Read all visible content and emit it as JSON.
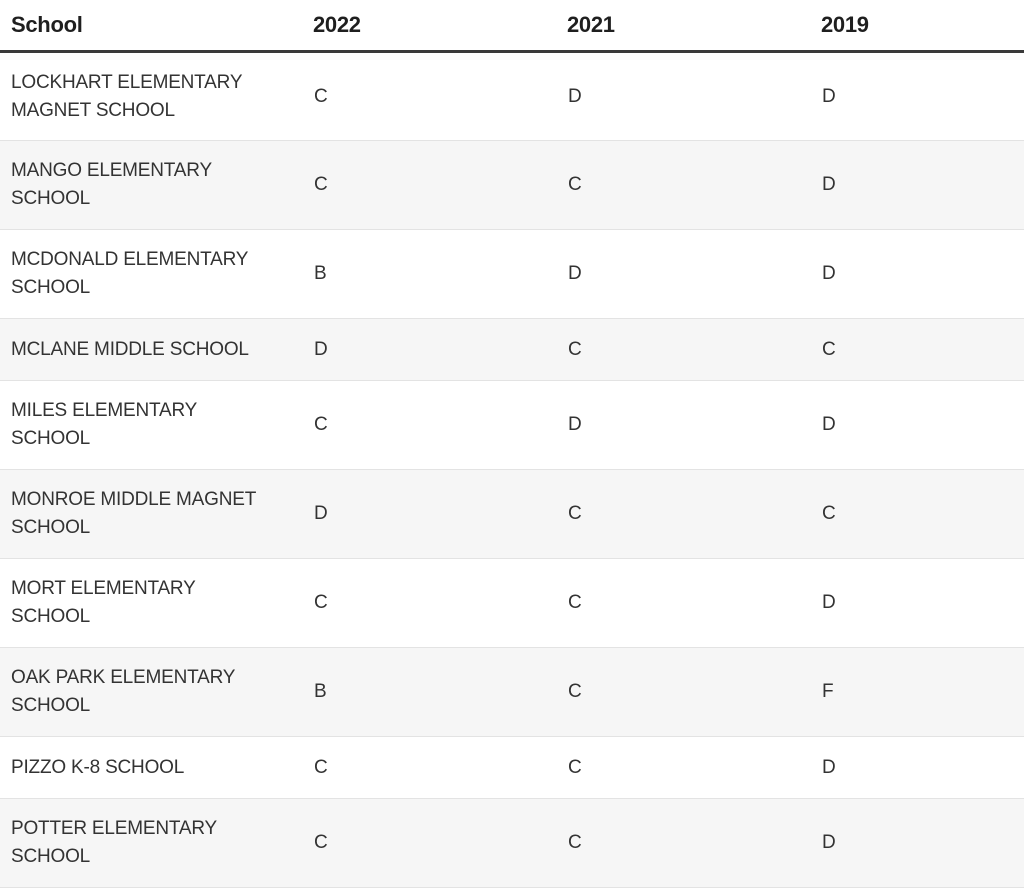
{
  "table": {
    "headers": {
      "school": "School",
      "y2022": "2022",
      "y2021": "2021",
      "y2019": "2019"
    },
    "rows": [
      {
        "school": "LOCKHART ELEMENTARY MAGNET SCHOOL",
        "g2022": "C",
        "g2021": "D",
        "g2019": "D"
      },
      {
        "school": "MANGO ELEMENTARY SCHOOL",
        "g2022": "C",
        "g2021": "C",
        "g2019": "D"
      },
      {
        "school": "MCDONALD ELEMENTARY SCHOOL",
        "g2022": "B",
        "g2021": "D",
        "g2019": "D"
      },
      {
        "school": "MCLANE MIDDLE SCHOOL",
        "g2022": "D",
        "g2021": "C",
        "g2019": "C"
      },
      {
        "school": "MILES ELEMENTARY SCHOOL",
        "g2022": "C",
        "g2021": "D",
        "g2019": "D"
      },
      {
        "school": "MONROE MIDDLE MAGNET SCHOOL",
        "g2022": "D",
        "g2021": "C",
        "g2019": "C"
      },
      {
        "school": "MORT ELEMENTARY SCHOOL",
        "g2022": "C",
        "g2021": "C",
        "g2019": "D"
      },
      {
        "school": "OAK PARK ELEMENTARY SCHOOL",
        "g2022": "B",
        "g2021": "C",
        "g2019": "F"
      },
      {
        "school": "PIZZO K-8 SCHOOL",
        "g2022": "C",
        "g2021": "C",
        "g2019": "D"
      },
      {
        "school": "POTTER ELEMENTARY SCHOOL",
        "g2022": "C",
        "g2021": "C",
        "g2019": "D"
      }
    ]
  }
}
